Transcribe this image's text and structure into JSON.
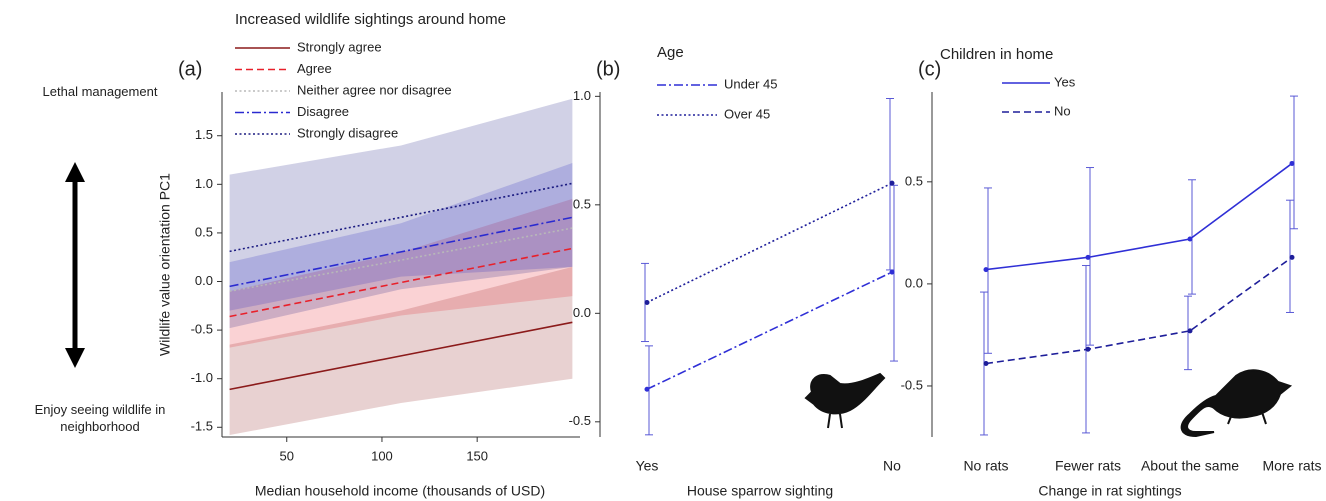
{
  "chart_data": [
    {
      "type": "line",
      "panel_label": "(a)",
      "legend_title": "Increased wildlife sightings around home",
      "xlabel": "Median household income (thousands of USD)",
      "ylabel": "Wildlife value orientation PC1",
      "annotations": [
        "Lethal management",
        "Enjoy seeing wildlife in neighborhood"
      ],
      "x": [
        20,
        110,
        200
      ],
      "xlim": [
        16,
        204
      ],
      "xticks": [
        50,
        100,
        150
      ],
      "ylim": [
        -1.6,
        1.95
      ],
      "yticks": [
        -1.5,
        {
          "value": -1,
          "label": "-1.0"
        },
        -0.5,
        {
          "value": 0,
          "label": "0.0"
        },
        0.5,
        {
          "value": 1,
          "label": "1.0"
        },
        1.5
      ],
      "series": [
        {
          "name": "Strongly agree",
          "color": "#8b1a1a",
          "linestyle": "solid",
          "values": [
            -1.11,
            -0.765,
            -0.42
          ],
          "lower": [
            -1.58,
            -1.25,
            -1.0
          ],
          "upper": [
            -0.65,
            -0.3,
            0.15
          ]
        },
        {
          "name": "Agree",
          "color": "#e8202a",
          "linestyle": "dashed",
          "values": [
            -0.36,
            -0.01,
            0.34
          ],
          "lower": [
            -0.68,
            -0.35,
            -0.15
          ],
          "upper": [
            -0.1,
            0.3,
            0.85
          ]
        },
        {
          "name": "Neither agree nor disagree",
          "color": "#b8b8b8",
          "linestyle": "dotted",
          "values": [
            -0.1,
            0.22,
            0.55
          ]
        },
        {
          "name": "Disagree",
          "color": "#2a2ad0",
          "linestyle": "dashdot",
          "values": [
            -0.05,
            0.305,
            0.66
          ],
          "lower": [
            -0.3,
            0.05,
            0.15
          ],
          "upper": [
            0.2,
            0.6,
            1.22
          ]
        },
        {
          "name": "Strongly disagree",
          "color": "#1a1a80",
          "linestyle": "dotted",
          "values": [
            0.31,
            0.66,
            1.01
          ],
          "lower": [
            -0.48,
            -0.08,
            0.15
          ],
          "upper": [
            1.1,
            1.4,
            1.88
          ]
        }
      ]
    },
    {
      "type": "line",
      "panel_label": "(b)",
      "legend_title": "Age",
      "xlabel": "House sparrow sighting",
      "categories": [
        "Yes",
        "No"
      ],
      "ylim": [
        -0.57,
        1.02
      ],
      "yticks": [
        -0.5,
        {
          "value": 0,
          "label": "0.0"
        },
        0.5,
        {
          "value": 1,
          "label": "1.0"
        }
      ],
      "series": [
        {
          "name": "Under 45",
          "color": "#2f2fd6",
          "linestyle": "dashdot",
          "values": [
            -0.35,
            0.19
          ],
          "lower": [
            -0.56,
            -0.22
          ],
          "upper": [
            -0.15,
            0.59
          ]
        },
        {
          "name": "Over 45",
          "color": "#1e1e9a",
          "linestyle": "dotted",
          "values": [
            0.05,
            0.6
          ],
          "lower": [
            -0.13,
            0.2
          ],
          "upper": [
            0.23,
            0.99
          ]
        }
      ]
    },
    {
      "type": "line",
      "panel_label": "(c)",
      "legend_title": "Children in home",
      "xlabel": "Change in rat sightings",
      "categories": [
        "No rats",
        "Fewer rats",
        "About the same",
        "More rats"
      ],
      "ylim": [
        -0.75,
        0.94
      ],
      "yticks": [
        -0.5,
        {
          "value": 0,
          "label": "0.0"
        },
        0.5
      ],
      "series": [
        {
          "name": "Yes",
          "color": "#2f2fd6",
          "linestyle": "solid",
          "values": [
            0.07,
            0.13,
            0.22,
            0.59
          ],
          "lower": [
            -0.34,
            -0.3,
            -0.05,
            0.27
          ],
          "upper": [
            0.47,
            0.57,
            0.51,
            0.92
          ]
        },
        {
          "name": "No",
          "color": "#1e1e9a",
          "linestyle": "dashed",
          "values": [
            -0.39,
            -0.32,
            -0.23,
            0.13
          ],
          "lower": [
            -0.74,
            -0.73,
            -0.42,
            -0.14
          ],
          "upper": [
            -0.04,
            0.09,
            -0.06,
            0.41
          ]
        }
      ]
    }
  ]
}
